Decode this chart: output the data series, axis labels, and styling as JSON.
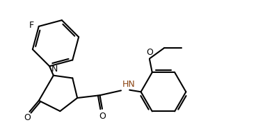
{
  "background_color": "#ffffff",
  "line_color": "#000000",
  "hn_color": "#8B4513",
  "line_width": 1.5,
  "figsize": [
    3.81,
    1.93
  ],
  "dpi": 100,
  "xlim": [
    0,
    10
  ],
  "ylim": [
    0,
    5
  ]
}
